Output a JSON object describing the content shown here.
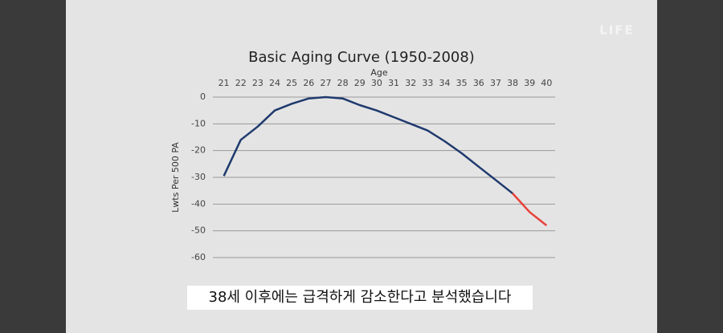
{
  "chart_data": {
    "type": "line",
    "title": "Basic Aging Curve (1950-2008)",
    "x_label": "Age",
    "y_label": "Lwts Per 500 PA",
    "categories": [
      "21",
      "22",
      "23",
      "24",
      "25",
      "26",
      "27",
      "28",
      "29",
      "30",
      "31",
      "32",
      "33",
      "34",
      "35",
      "36",
      "37",
      "38",
      "39",
      "40"
    ],
    "series": [
      {
        "color": "#1f3a6e",
        "values": [
          -29.5,
          -16,
          -11,
          -5,
          -2.5,
          -0.5,
          0,
          -0.5,
          -3,
          -5,
          -7.5,
          -10,
          -12.5,
          -16.5,
          -21,
          -26,
          -31,
          -36,
          null,
          null
        ]
      },
      {
        "color": "#e8423a",
        "values": [
          null,
          null,
          null,
          null,
          null,
          null,
          null,
          null,
          null,
          null,
          null,
          null,
          null,
          null,
          null,
          null,
          null,
          -36,
          -43,
          -48
        ]
      }
    ],
    "ylim": [
      -60,
      0
    ],
    "yticks": [
      0,
      -10,
      -20,
      -30,
      -40,
      -50,
      -60
    ],
    "grid": true
  },
  "caption": "38세 이후에는 급격하게 감소한다고 분석했습니다",
  "watermark": "LIFE"
}
